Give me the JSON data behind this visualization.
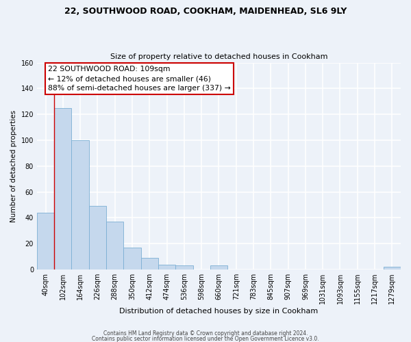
{
  "title1": "22, SOUTHWOOD ROAD, COOKHAM, MAIDENHEAD, SL6 9LY",
  "title2": "Size of property relative to detached houses in Cookham",
  "xlabel": "Distribution of detached houses by size in Cookham",
  "ylabel": "Number of detached properties",
  "bar_labels": [
    "40sqm",
    "102sqm",
    "164sqm",
    "226sqm",
    "288sqm",
    "350sqm",
    "412sqm",
    "474sqm",
    "536sqm",
    "598sqm",
    "660sqm",
    "721sqm",
    "783sqm",
    "845sqm",
    "907sqm",
    "969sqm",
    "1031sqm",
    "1093sqm",
    "1155sqm",
    "1217sqm",
    "1279sqm"
  ],
  "bar_values": [
    44,
    125,
    100,
    49,
    37,
    17,
    9,
    4,
    3,
    0,
    3,
    0,
    0,
    0,
    0,
    0,
    0,
    0,
    0,
    0,
    2
  ],
  "bar_color": "#c5d8ed",
  "bar_edge_color": "#7bafd4",
  "vline_color": "#cc0000",
  "annotation_text": "22 SOUTHWOOD ROAD: 109sqm\n← 12% of detached houses are smaller (46)\n88% of semi-detached houses are larger (337) →",
  "annotation_box_edge": "#cc0000",
  "ylim": [
    0,
    160
  ],
  "yticks": [
    0,
    20,
    40,
    60,
    80,
    100,
    120,
    140,
    160
  ],
  "footer1": "Contains HM Land Registry data © Crown copyright and database right 2024.",
  "footer2": "Contains public sector information licensed under the Open Government Licence v3.0.",
  "bg_color": "#edf2f9",
  "plot_bg_color": "#edf2f9",
  "grid_color": "#ffffff"
}
